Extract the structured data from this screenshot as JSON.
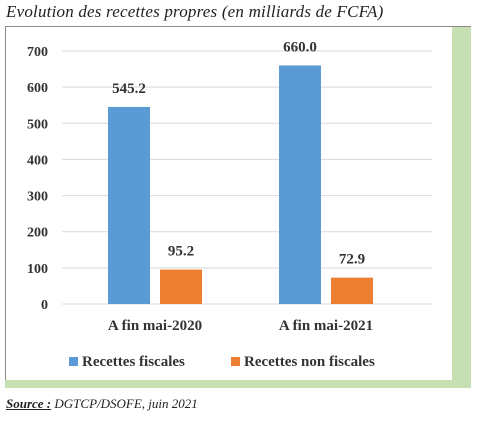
{
  "title": "Evolution des recettes propres (en milliards de FCFA)",
  "source": {
    "label": "Source :",
    "text": "DGTCP/DSOFE, juin 2021"
  },
  "colors": {
    "frame_accent": "#c6e0b4"
  },
  "chart_data": {
    "type": "bar",
    "categories": [
      "A fin mai-2020",
      "A fin mai-2021"
    ],
    "series": [
      {
        "name": "Recettes fiscales",
        "values": [
          545.2,
          660.0
        ],
        "labels": [
          "545.2",
          "660.0"
        ],
        "color": "#5b9bd5"
      },
      {
        "name": "Recettes non fiscales",
        "values": [
          95.2,
          72.9
        ],
        "labels": [
          "95.2",
          "72.9"
        ],
        "color": "#ed7d31"
      }
    ],
    "ylim": [
      0,
      700
    ],
    "yticks": [
      0,
      100,
      200,
      300,
      400,
      500,
      600,
      700
    ],
    "grid": true,
    "legend": "bottom"
  }
}
